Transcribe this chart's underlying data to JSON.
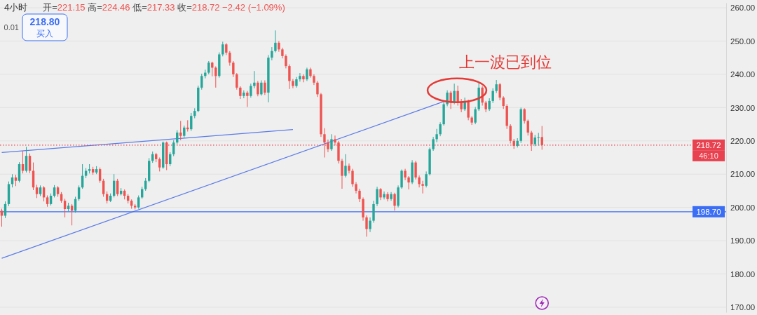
{
  "chart_data": {
    "type": "candlestick",
    "title": "4小时",
    "subtitle": "开=221.15 高=224.46 低=217.33 收=218.72 −2.42 (−1.09%)",
    "categories": [
      null,
      null,
      null,
      null,
      null,
      null,
      null,
      null,
      null,
      null,
      null,
      null,
      null,
      null,
      null,
      null,
      null,
      null,
      null,
      null,
      null,
      null,
      null,
      null,
      null,
      null,
      null,
      null,
      null,
      null,
      null,
      null,
      null,
      null,
      null,
      null,
      null,
      null,
      null,
      null,
      null,
      null,
      null,
      null,
      null,
      null,
      null,
      null,
      null,
      null,
      null,
      null,
      null,
      null,
      null,
      null,
      null,
      null,
      null,
      null,
      null,
      null,
      null,
      null,
      null,
      null,
      null,
      null,
      null,
      null,
      null,
      null,
      null,
      null,
      null,
      null,
      null,
      null,
      null,
      null,
      null,
      null,
      null,
      null,
      null,
      null,
      null,
      null,
      null,
      null,
      null,
      null,
      null,
      null,
      null,
      null,
      null,
      null,
      null,
      null,
      null,
      null,
      null,
      null,
      null,
      null,
      null,
      null,
      null,
      null,
      null,
      null,
      null,
      null,
      null,
      null,
      null,
      null,
      null,
      null,
      null,
      null,
      null,
      null,
      null,
      null,
      null,
      null,
      null,
      null,
      null,
      null,
      null,
      null,
      null,
      null,
      null,
      null,
      null,
      null,
      null,
      null,
      null,
      null,
      null,
      null,
      null,
      null,
      null,
      null,
      null,
      null,
      null,
      null,
      null,
      null,
      null,
      null,
      null,
      null,
      null,
      null,
      null,
      null,
      null,
      null,
      null,
      null,
      null,
      null,
      null,
      null,
      null,
      null,
      null,
      null,
      null,
      null,
      null,
      null,
      null,
      null,
      null,
      null,
      null,
      null,
      null,
      null,
      null,
      null,
      null,
      null,
      null,
      null,
      null,
      null,
      null,
      null,
      null,
      null,
      null,
      null,
      null,
      null,
      null,
      null,
      null
    ],
    "ohlc": [
      [
        199,
        199.6,
        194.2,
        197.5
      ],
      [
        197.5,
        201.8,
        196.8,
        201
      ],
      [
        201,
        207.8,
        200.4,
        207
      ],
      [
        207,
        210,
        206,
        209
      ],
      [
        209,
        209.8,
        206.4,
        208
      ],
      [
        208,
        213.6,
        207.5,
        213
      ],
      [
        213,
        217,
        210.2,
        211
      ],
      [
        211,
        218.2,
        210.5,
        215.5
      ],
      [
        215.5,
        216.2,
        210.3,
        211
      ],
      [
        211,
        213.5,
        205.2,
        206
      ],
      [
        206,
        206.8,
        202.8,
        204
      ],
      [
        204,
        206.6,
        203.4,
        206
      ],
      [
        206,
        206.4,
        201.8,
        203
      ],
      [
        203,
        203.6,
        200.2,
        201
      ],
      [
        201,
        204.2,
        200.6,
        203.5
      ],
      [
        203.5,
        206.7,
        203,
        206
      ],
      [
        206,
        206.4,
        203.2,
        204
      ],
      [
        204,
        204.6,
        201.4,
        202
      ],
      [
        202,
        202.6,
        197,
        199.5
      ],
      [
        199.5,
        201.4,
        198.8,
        200.5
      ],
      [
        200.5,
        201,
        194.6,
        199
      ],
      [
        199,
        203.2,
        198.4,
        202.5
      ],
      [
        202.5,
        206.6,
        202,
        206
      ],
      [
        206,
        213,
        205.6,
        209.5
      ],
      [
        209.5,
        211.8,
        208.8,
        211
      ],
      [
        211,
        213,
        210.2,
        211.5
      ],
      [
        211.5,
        212.2,
        209.8,
        210.5
      ],
      [
        210.5,
        212.4,
        210,
        211.5
      ],
      [
        211.5,
        212,
        207.4,
        208
      ],
      [
        208,
        208.6,
        203.2,
        204
      ],
      [
        204,
        204.8,
        201.2,
        202
      ],
      [
        202,
        204.2,
        201.6,
        203.5
      ],
      [
        203.5,
        210,
        203,
        208
      ],
      [
        208,
        208.6,
        203.4,
        204
      ],
      [
        204,
        205.8,
        203.6,
        205
      ],
      [
        205,
        205.4,
        202.4,
        203.5
      ],
      [
        203.5,
        204,
        201.2,
        202
      ],
      [
        202,
        202.4,
        199.6,
        200.5
      ],
      [
        200.5,
        201,
        199.4,
        200
      ],
      [
        200,
        203.6,
        199.6,
        203
      ],
      [
        203,
        206.2,
        202.6,
        205.5
      ],
      [
        205.5,
        208.8,
        205,
        208
      ],
      [
        208,
        214.8,
        207.6,
        214
      ],
      [
        214,
        216.8,
        213.4,
        216
      ],
      [
        216,
        216.4,
        213.6,
        214.5
      ],
      [
        214.5,
        215,
        210.8,
        212
      ],
      [
        212,
        219.8,
        211.6,
        219.5
      ],
      [
        219.5,
        219.8,
        211.2,
        213
      ],
      [
        213,
        216.6,
        212.4,
        216
      ],
      [
        216,
        220.2,
        215.4,
        219.5
      ],
      [
        219.5,
        223.2,
        219,
        222.5
      ],
      [
        222.5,
        226,
        220.2,
        221.5
      ],
      [
        221.5,
        224.6,
        221,
        224
      ],
      [
        224,
        226.2,
        222.8,
        223.5
      ],
      [
        223.5,
        228.4,
        223,
        227.5
      ],
      [
        227.5,
        229.8,
        226.8,
        229
      ],
      [
        229,
        236.6,
        228.6,
        236
      ],
      [
        236,
        240.2,
        235.4,
        239.5
      ],
      [
        239.5,
        241.4,
        238.8,
        240.5
      ],
      [
        240.5,
        244,
        240,
        243.5
      ],
      [
        243.5,
        243.8,
        239.4,
        242
      ],
      [
        242,
        242.4,
        236,
        239.5
      ],
      [
        239.5,
        246.6,
        239,
        246
      ],
      [
        246,
        249.8,
        245.4,
        249
      ],
      [
        249,
        249.4,
        245.8,
        246.5
      ],
      [
        246.5,
        247,
        242.6,
        243.5
      ],
      [
        243.5,
        244,
        239.2,
        240
      ],
      [
        240,
        240.4,
        235.4,
        236
      ],
      [
        236,
        236.4,
        232.6,
        233.5
      ],
      [
        233.5,
        235.2,
        232.8,
        234.5
      ],
      [
        234.5,
        235,
        230.2,
        233.5
      ],
      [
        233.5,
        237.2,
        233,
        236.5
      ],
      [
        236.5,
        241,
        235.8,
        237.5
      ],
      [
        237.5,
        238,
        233.4,
        234
      ],
      [
        234,
        238.2,
        233.6,
        237.5
      ],
      [
        237.5,
        238.2,
        233.8,
        234.5
      ],
      [
        234.5,
        245.8,
        231.6,
        245
      ],
      [
        245,
        248.2,
        244.2,
        247
      ],
      [
        247,
        253.2,
        246.6,
        249.5
      ],
      [
        249.5,
        250,
        246.8,
        247.5
      ],
      [
        247.5,
        248,
        244.8,
        245.5
      ],
      [
        245.5,
        246,
        241.8,
        242.5
      ],
      [
        242.5,
        243,
        235.6,
        238
      ],
      [
        238,
        238.6,
        235.8,
        236.5
      ],
      [
        236.5,
        239.2,
        236,
        238.5
      ],
      [
        238.5,
        240.4,
        237.8,
        239.5
      ],
      [
        239.5,
        240,
        237.6,
        238.5
      ],
      [
        238.5,
        242,
        238,
        241.5
      ],
      [
        241.5,
        242,
        239,
        239.5
      ],
      [
        239.5,
        240,
        236.8,
        237.5
      ],
      [
        237.5,
        238,
        233.2,
        234
      ],
      [
        234,
        234.4,
        221.2,
        222
      ],
      [
        222,
        223.8,
        215,
        219.5
      ],
      [
        219.5,
        220.4,
        216.6,
        217.5
      ],
      [
        217.5,
        222,
        217,
        220.5
      ],
      [
        220.5,
        221.6,
        218.6,
        219.5
      ],
      [
        219.5,
        220,
        213.2,
        214
      ],
      [
        214,
        214.6,
        205.6,
        209.5
      ],
      [
        209.5,
        216,
        209,
        212.5
      ],
      [
        212.5,
        213.2,
        210.2,
        211
      ],
      [
        211,
        211.6,
        206.2,
        207
      ],
      [
        207,
        207.6,
        204.2,
        205
      ],
      [
        205,
        205.6,
        201.6,
        202.5
      ],
      [
        202.5,
        203,
        196,
        197
      ],
      [
        197,
        197.6,
        191.2,
        193.5
      ],
      [
        193.5,
        197,
        192.6,
        196
      ],
      [
        196,
        202,
        195.4,
        201
      ],
      [
        201,
        206.2,
        200.4,
        205.5
      ],
      [
        205.5,
        205.8,
        202.2,
        203
      ],
      [
        203,
        204.8,
        202.4,
        204
      ],
      [
        204,
        204.6,
        201.8,
        202.5
      ],
      [
        202.5,
        204.6,
        202,
        204
      ],
      [
        204,
        204.4,
        199,
        200.5
      ],
      [
        200.5,
        206.6,
        200,
        206
      ],
      [
        206,
        211.4,
        205.6,
        211
      ],
      [
        211,
        211.6,
        208.2,
        209
      ],
      [
        209,
        209.4,
        205.4,
        207.5
      ],
      [
        207.5,
        214.2,
        207,
        213.5
      ],
      [
        213.5,
        214,
        208.4,
        209
      ],
      [
        209,
        209.6,
        206,
        207
      ],
      [
        207,
        208,
        204.2,
        206.5
      ],
      [
        206.5,
        210.8,
        206,
        210
      ],
      [
        210,
        218,
        209.6,
        217.5
      ],
      [
        217.5,
        221.2,
        217,
        220.5
      ],
      [
        220.5,
        223.6,
        219.6,
        222
      ],
      [
        222,
        225.6,
        221.4,
        225
      ],
      [
        225,
        231.6,
        224.6,
        231
      ],
      [
        231,
        235.2,
        230.4,
        234.5
      ],
      [
        234.5,
        235,
        229.6,
        231.5
      ],
      [
        231.5,
        237.2,
        231,
        235
      ],
      [
        235,
        236.6,
        230.6,
        231.5
      ],
      [
        231.5,
        232.6,
        228.6,
        229.5
      ],
      [
        229.5,
        233,
        229,
        232
      ],
      [
        232,
        232.4,
        226.2,
        227
      ],
      [
        227,
        227.4,
        224.8,
        225.5
      ],
      [
        225.5,
        230.2,
        225,
        229.5
      ],
      [
        229.5,
        237.5,
        229,
        236
      ],
      [
        236,
        236.4,
        230.6,
        231.5
      ],
      [
        231.5,
        232,
        228.6,
        229.5
      ],
      [
        229.5,
        232.8,
        229,
        232
      ],
      [
        232,
        235.8,
        231.4,
        235
      ],
      [
        235,
        238.3,
        234.4,
        237
      ],
      [
        237,
        237.4,
        232.2,
        233
      ],
      [
        233,
        233.4,
        229.6,
        230.5
      ],
      [
        230.5,
        231,
        223.6,
        224.5
      ],
      [
        224.5,
        225,
        219.2,
        220
      ],
      [
        220,
        220.6,
        217.6,
        218.5
      ],
      [
        218.5,
        220.8,
        218,
        220
      ],
      [
        220,
        230,
        219.4,
        229.5
      ],
      [
        229.5,
        229.8,
        225.2,
        226
      ],
      [
        226,
        226.4,
        221.6,
        222.5
      ],
      [
        222.5,
        223,
        217,
        219
      ],
      [
        219,
        221.8,
        218.4,
        221
      ],
      [
        221,
        222.4,
        218.6,
        221.14
      ],
      [
        221.15,
        224.46,
        217.33,
        218.72
      ],
      null,
      null,
      null,
      null,
      null,
      null,
      null,
      null,
      null,
      null,
      null,
      null,
      null,
      null,
      null,
      null,
      null,
      null,
      null,
      null,
      null,
      null,
      null,
      null,
      null,
      null,
      null,
      null,
      null,
      null,
      null,
      null,
      null,
      null,
      null,
      null,
      null,
      null,
      null,
      null,
      null,
      null,
      null,
      null,
      null,
      null,
      null,
      null,
      null,
      null,
      null,
      null
    ],
    "series": [
      {
        "type": "line",
        "color": "#5b7be8",
        "values": [
          216.5,
          null,
          null,
          null,
          null,
          null,
          null,
          null,
          null,
          null,
          null,
          null,
          null,
          null,
          null,
          null,
          null,
          null,
          null,
          null,
          null,
          null,
          null,
          null,
          null,
          null,
          null,
          null,
          null,
          null,
          null,
          null,
          null,
          null,
          null,
          null,
          null,
          null,
          null,
          null,
          null,
          null,
          null,
          null,
          null,
          null,
          null,
          null,
          null,
          null,
          null,
          null,
          null,
          null,
          null,
          null,
          null,
          null,
          null,
          null,
          null,
          null,
          null,
          null,
          null,
          null,
          null,
          null,
          null,
          null,
          null,
          null,
          null,
          null,
          null,
          null,
          null,
          null,
          null,
          null,
          null,
          null,
          null,
          223.4,
          null,
          null,
          null,
          null,
          null,
          null,
          null,
          null,
          null,
          null,
          null,
          null,
          null,
          null,
          null,
          null,
          null,
          null,
          null,
          null,
          null,
          null,
          null,
          null,
          null,
          null,
          null,
          null,
          null,
          null,
          null,
          null,
          null,
          null,
          null,
          null,
          null,
          null,
          null,
          null,
          null,
          null,
          null,
          null,
          null,
          null,
          null,
          null,
          null,
          null,
          null,
          null,
          null,
          null,
          null,
          null,
          null,
          null,
          null,
          null,
          null,
          null,
          null,
          null,
          null,
          null,
          null,
          null,
          null,
          null,
          null,
          null,
          null,
          null,
          null,
          null,
          null,
          null,
          null,
          null,
          null,
          null,
          null,
          null,
          null,
          null,
          null,
          null,
          null,
          null,
          null,
          null,
          null,
          null,
          null,
          null,
          null,
          null,
          null,
          null,
          null,
          null,
          null,
          null,
          null,
          null,
          null,
          null,
          null,
          null,
          null,
          null,
          null,
          null,
          null,
          null,
          null,
          null,
          null,
          null,
          null,
          null,
          null
        ]
      },
      {
        "type": "line",
        "color": "#5b7be8",
        "values": [
          184.7,
          null,
          null,
          null,
          null,
          null,
          null,
          null,
          null,
          null,
          null,
          null,
          null,
          null,
          null,
          null,
          null,
          null,
          null,
          null,
          null,
          null,
          null,
          null,
          null,
          null,
          null,
          null,
          null,
          null,
          null,
          null,
          null,
          null,
          null,
          null,
          null,
          null,
          null,
          null,
          null,
          null,
          null,
          null,
          null,
          null,
          null,
          null,
          null,
          null,
          null,
          null,
          null,
          null,
          null,
          null,
          null,
          null,
          null,
          null,
          null,
          null,
          null,
          null,
          null,
          null,
          null,
          null,
          null,
          null,
          null,
          null,
          null,
          null,
          null,
          null,
          null,
          null,
          null,
          null,
          null,
          null,
          null,
          null,
          null,
          null,
          null,
          null,
          null,
          null,
          null,
          null,
          null,
          null,
          null,
          null,
          null,
          null,
          null,
          null,
          null,
          null,
          null,
          null,
          null,
          null,
          null,
          null,
          null,
          null,
          null,
          null,
          null,
          null,
          null,
          null,
          null,
          null,
          null,
          null,
          null,
          null,
          null,
          null,
          null,
          null,
          null,
          232.2,
          null,
          null,
          null,
          null,
          null,
          null,
          null,
          null,
          null,
          null,
          null,
          null,
          null,
          null,
          null,
          null,
          null,
          null,
          null,
          null,
          null,
          null,
          null,
          null,
          null,
          null,
          null,
          null,
          null,
          null,
          null,
          null,
          null,
          null,
          null,
          null,
          null,
          null,
          null,
          null,
          null,
          null,
          null,
          null,
          null,
          null,
          null,
          null,
          null,
          null,
          null,
          null,
          null,
          null,
          null,
          null,
          null,
          null,
          null,
          null,
          null,
          null,
          null,
          null,
          null,
          null,
          null,
          null,
          null,
          null,
          null,
          null,
          null,
          null,
          null,
          null,
          null,
          null,
          null
        ]
      }
    ],
    "ref_lines": [
      {
        "axis": "y",
        "value": 218.72,
        "label": "218.72",
        "color": "#e8414f",
        "line_style": "dotted"
      },
      {
        "axis": "y",
        "value": 198.7,
        "label": "198.70",
        "color": "#3b6ef5",
        "line_style": "solid"
      }
    ],
    "annotations": [
      "上一波已到位",
      "218.80",
      "买入",
      "0.01",
      "46:10"
    ],
    "ylim": [
      168.5,
      261.5
    ],
    "yticks": [
      {
        "value": 170,
        "label": "170.00"
      },
      {
        "value": 180,
        "label": "180.00"
      },
      {
        "value": 190,
        "label": "190.00"
      },
      {
        "value": 200,
        "label": "200.00"
      },
      {
        "value": 210,
        "label": "210.00"
      },
      {
        "value": 220,
        "label": "220.00"
      },
      {
        "value": 230,
        "label": "230.00"
      },
      {
        "value": 240,
        "label": "240.00"
      },
      {
        "value": 250,
        "label": "250.00"
      },
      {
        "value": 260,
        "label": "260.00"
      }
    ],
    "grid": "y",
    "tick_labels": "y"
  }
}
